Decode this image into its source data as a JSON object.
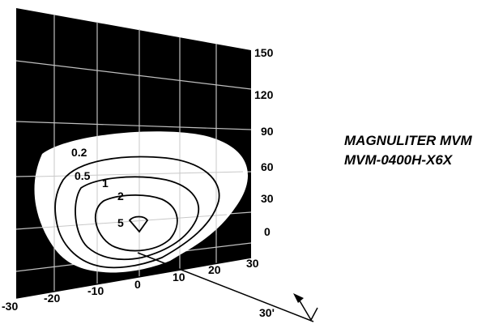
{
  "title": {
    "line1": "MAGNULITER MVM",
    "line2": "MVM-0400H-X6X"
  },
  "vertical_axis": {
    "ticks": [
      "150",
      "120",
      "90",
      "60",
      "30",
      "0"
    ]
  },
  "horizontal_axis": {
    "ticks": [
      "-30",
      "-20",
      "-10",
      "0",
      "10",
      "20",
      "30"
    ]
  },
  "depth_axis": {
    "label": "30'"
  },
  "contours": [
    {
      "label": "0.2"
    },
    {
      "label": "0.5"
    },
    {
      "label": "1"
    },
    {
      "label": "2"
    },
    {
      "label": "5"
    }
  ],
  "colors": {
    "background": "#000000",
    "grid": "#bfbfbf",
    "illuminated": "#ffffff"
  }
}
